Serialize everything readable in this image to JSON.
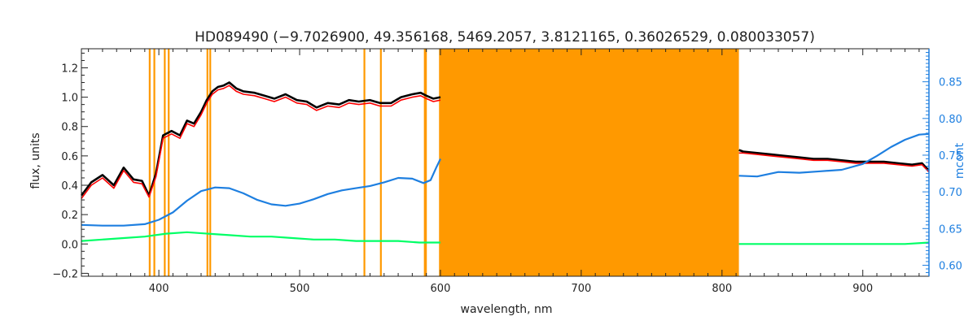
{
  "chart_data": {
    "type": "line",
    "title": "HD089490   (−9.7026900, 49.356168, 5469.2057, 3.8121165, 0.36026529, 0.080033057)",
    "xlabel": "wavelength, nm",
    "ylabel": "flux, units",
    "y2label": "mcont",
    "xlim": [
      345,
      947
    ],
    "ylim": [
      -0.22,
      1.33
    ],
    "y2lim": [
      0.585,
      0.895
    ],
    "x_ticks": [
      400,
      500,
      600,
      700,
      800,
      900
    ],
    "x_tick_labels": [
      "400",
      "500",
      "600",
      "700",
      "800",
      "900"
    ],
    "y_ticks": [
      -0.2,
      0.0,
      0.2,
      0.4,
      0.6,
      0.8,
      1.0,
      1.2
    ],
    "y_tick_labels": [
      "−0.2",
      "0.0",
      "0.2",
      "0.4",
      "0.6",
      "0.8",
      "1.0",
      "1.2"
    ],
    "y2_ticks": [
      0.6,
      0.65,
      0.7,
      0.75,
      0.8,
      0.85
    ],
    "y2_tick_labels": [
      "0.60",
      "0.65",
      "0.70",
      "0.75",
      "0.80",
      "0.85"
    ],
    "masked_band": [
      599,
      812
    ],
    "masked_lines": [
      393.5,
      396.8,
      404.2,
      407.0,
      434.5,
      436.5,
      546.0,
      557.7,
      588.9,
      589.7
    ],
    "colors": {
      "observed": "#000000",
      "model": "#ff0000",
      "residual": "#00ff66",
      "mcont": "#1e7fe0",
      "mask": "#ff9900",
      "axes": "#222222"
    },
    "series": [
      {
        "key": "observed",
        "x": [
          345,
          352,
          360,
          368,
          375,
          382,
          388,
          393,
          398,
          403,
          409,
          415,
          420,
          425,
          430,
          434,
          438,
          442,
          446,
          450,
          455,
          460,
          468,
          475,
          482,
          490,
          498,
          505,
          512,
          520,
          528,
          535,
          542,
          550,
          557,
          565,
          572,
          580,
          586,
          590,
          595,
          600,
          812,
          815,
          825,
          835,
          845,
          855,
          865,
          875,
          885,
          895,
          905,
          915,
          925,
          935,
          942,
          947
        ],
        "y": [
          0.33,
          0.42,
          0.47,
          0.4,
          0.52,
          0.44,
          0.43,
          0.33,
          0.48,
          0.74,
          0.77,
          0.74,
          0.84,
          0.82,
          0.9,
          0.98,
          1.04,
          1.07,
          1.08,
          1.1,
          1.06,
          1.04,
          1.03,
          1.01,
          0.99,
          1.02,
          0.98,
          0.97,
          0.93,
          0.96,
          0.95,
          0.98,
          0.97,
          0.98,
          0.96,
          0.96,
          1.0,
          1.02,
          1.03,
          1.01,
          0.99,
          1.0,
          0.64,
          0.63,
          0.62,
          0.61,
          0.6,
          0.59,
          0.58,
          0.58,
          0.57,
          0.56,
          0.56,
          0.56,
          0.55,
          0.54,
          0.55,
          0.5
        ]
      },
      {
        "key": "model",
        "x": [
          345,
          352,
          360,
          368,
          375,
          382,
          388,
          393,
          398,
          403,
          409,
          415,
          420,
          425,
          430,
          434,
          438,
          442,
          446,
          450,
          455,
          460,
          468,
          475,
          482,
          490,
          498,
          505,
          512,
          520,
          528,
          535,
          542,
          550,
          557,
          565,
          572,
          580,
          586,
          590,
          595,
          600,
          812,
          815,
          825,
          835,
          845,
          855,
          865,
          875,
          885,
          895,
          905,
          915,
          925,
          935,
          942,
          947
        ],
        "y": [
          0.31,
          0.4,
          0.45,
          0.38,
          0.5,
          0.42,
          0.41,
          0.32,
          0.46,
          0.72,
          0.75,
          0.72,
          0.82,
          0.8,
          0.88,
          0.96,
          1.02,
          1.05,
          1.06,
          1.08,
          1.04,
          1.02,
          1.01,
          0.99,
          0.97,
          1.0,
          0.96,
          0.95,
          0.91,
          0.94,
          0.93,
          0.96,
          0.95,
          0.96,
          0.94,
          0.94,
          0.98,
          1.0,
          1.01,
          0.99,
          0.97,
          0.98,
          0.62,
          0.62,
          0.61,
          0.6,
          0.59,
          0.58,
          0.57,
          0.57,
          0.56,
          0.55,
          0.55,
          0.55,
          0.54,
          0.53,
          0.54,
          0.49
        ]
      },
      {
        "key": "residual",
        "x": [
          345,
          360,
          375,
          390,
          405,
          420,
          435,
          450,
          465,
          480,
          495,
          510,
          525,
          540,
          555,
          570,
          585,
          600,
          812,
          830,
          850,
          870,
          890,
          910,
          930,
          947
        ],
        "y": [
          0.02,
          0.03,
          0.04,
          0.05,
          0.07,
          0.08,
          0.07,
          0.06,
          0.05,
          0.05,
          0.04,
          0.03,
          0.03,
          0.02,
          0.02,
          0.02,
          0.01,
          0.01,
          0.0,
          0.0,
          0.0,
          0.0,
          0.0,
          0.0,
          0.0,
          0.01
        ]
      },
      {
        "key": "mcont",
        "axis": "right",
        "x": [
          345,
          360,
          375,
          390,
          400,
          410,
          420,
          430,
          440,
          450,
          460,
          470,
          480,
          490,
          500,
          510,
          520,
          530,
          540,
          550,
          560,
          570,
          580,
          588,
          593,
          597,
          600,
          812,
          825,
          840,
          855,
          870,
          885,
          900,
          910,
          920,
          930,
          940,
          947
        ],
        "y": [
          0.655,
          0.654,
          0.654,
          0.656,
          0.662,
          0.672,
          0.688,
          0.701,
          0.706,
          0.705,
          0.698,
          0.689,
          0.683,
          0.681,
          0.684,
          0.69,
          0.697,
          0.702,
          0.705,
          0.708,
          0.713,
          0.719,
          0.718,
          0.712,
          0.716,
          0.733,
          0.745,
          0.722,
          0.721,
          0.727,
          0.726,
          0.728,
          0.73,
          0.738,
          0.749,
          0.761,
          0.771,
          0.778,
          0.779
        ]
      }
    ]
  }
}
